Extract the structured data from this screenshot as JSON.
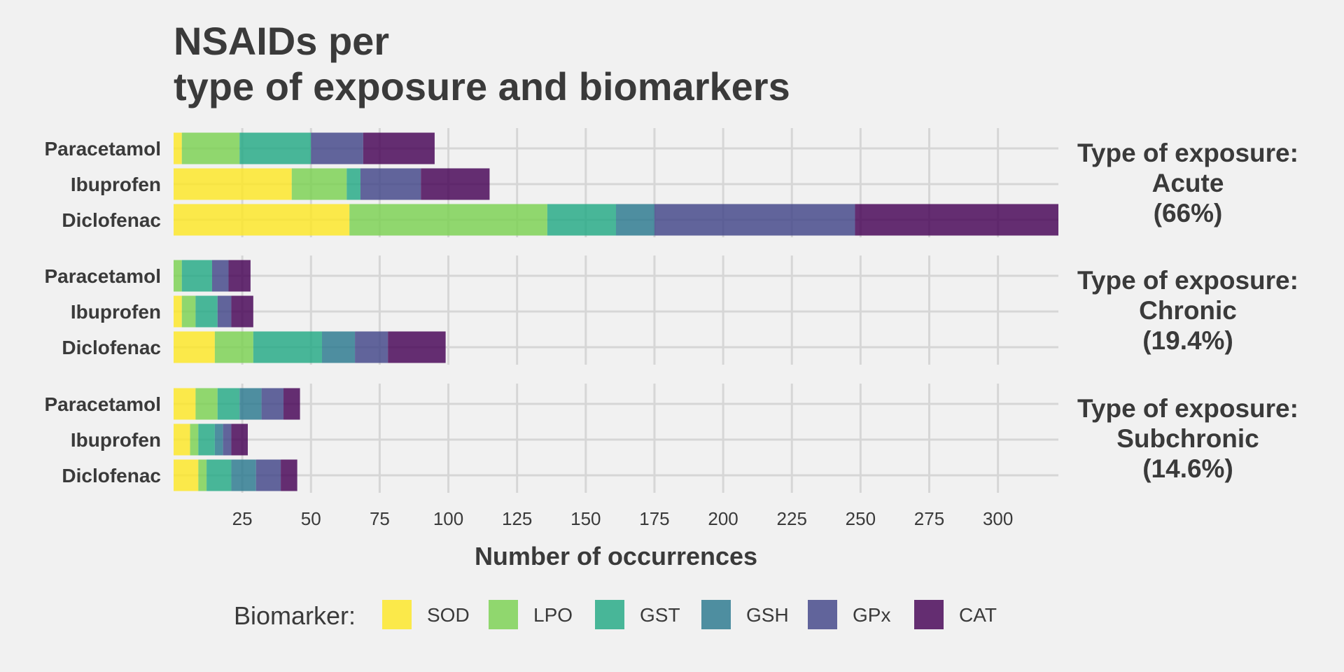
{
  "chart_data": {
    "type": "bar",
    "orientation": "horizontal",
    "stacked": true,
    "title": [
      "NSAIDs per",
      "type of exposure and biomarkers"
    ],
    "xlabel": "Number of occurrences",
    "ylabel": "",
    "xlim": [
      0,
      322
    ],
    "xticks": [
      25,
      50,
      75,
      100,
      125,
      150,
      175,
      200,
      225,
      250,
      275,
      300
    ],
    "grid": true,
    "legend": {
      "title": "Biomarker:",
      "position": "bottom"
    },
    "series": [
      {
        "name": "SOD",
        "color": "#fde725"
      },
      {
        "name": "LPO",
        "color": "#7ad151"
      },
      {
        "name": "GST",
        "color": "#22a884"
      },
      {
        "name": "GSH",
        "color": "#2a788e"
      },
      {
        "name": "GPx",
        "color": "#414487"
      },
      {
        "name": "CAT",
        "color": "#440154"
      }
    ],
    "facets": [
      {
        "label": [
          "Type of exposure:",
          "Acute",
          "(66%)"
        ],
        "categories": [
          "Paracetamol",
          "Ibuprofen",
          "Diclofenac"
        ],
        "values": [
          [
            3,
            21,
            26,
            0,
            19,
            26
          ],
          [
            43,
            20,
            5,
            0,
            22,
            25
          ],
          [
            64,
            72,
            25,
            14,
            73,
            74
          ]
        ]
      },
      {
        "label": [
          "Type of exposure:",
          "Chronic",
          "(19.4%)"
        ],
        "categories": [
          "Paracetamol",
          "Ibuprofen",
          "Diclofenac"
        ],
        "values": [
          [
            0,
            3,
            11,
            0,
            6,
            8
          ],
          [
            3,
            5,
            8,
            0,
            5,
            8
          ],
          [
            15,
            14,
            25,
            12,
            12,
            21
          ]
        ]
      },
      {
        "label": [
          "Type of exposure:",
          "Subchronic",
          "(14.6%)"
        ],
        "categories": [
          "Paracetamol",
          "Ibuprofen",
          "Diclofenac"
        ],
        "values": [
          [
            8,
            8,
            8,
            8,
            8,
            6
          ],
          [
            6,
            3,
            6,
            3,
            3,
            6
          ],
          [
            9,
            3,
            9,
            9,
            9,
            6
          ]
        ]
      }
    ]
  }
}
